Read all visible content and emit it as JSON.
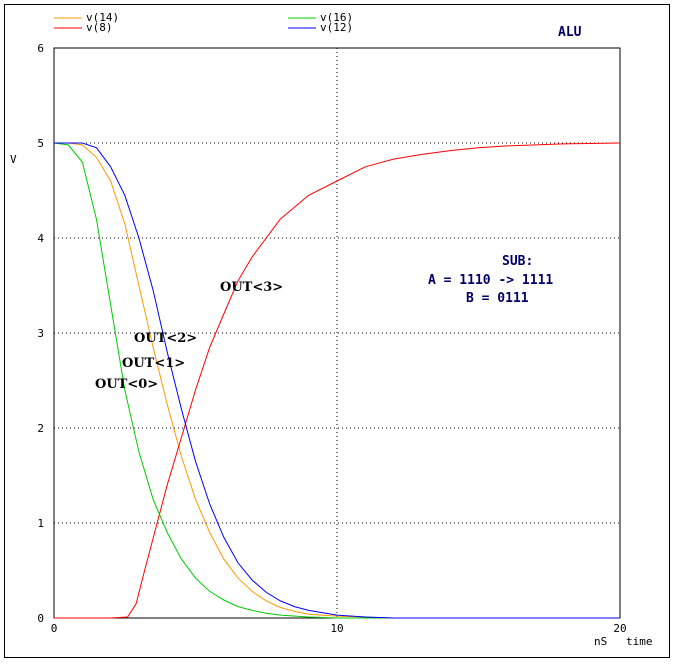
{
  "chart_data": {
    "type": "line",
    "title": "ALU",
    "ylabel": "V",
    "xlabel_unit": "nS",
    "xlabel": "time",
    "xlim": [
      0,
      20
    ],
    "ylim": [
      0,
      6
    ],
    "x_ticks": [
      "0",
      "10",
      "20"
    ],
    "y_ticks": [
      "0",
      "1",
      "2",
      "3",
      "4",
      "5",
      "6"
    ],
    "grid": true,
    "legend_position": "top-left",
    "series": [
      {
        "name": "v(14)",
        "color": "#ff9900",
        "x": [
          0,
          0.5,
          1.0,
          1.5,
          2.0,
          2.5,
          3.0,
          3.5,
          4.0,
          4.5,
          5.0,
          5.5,
          6.0,
          6.5,
          7.0,
          7.5,
          8.0,
          8.5,
          9.0,
          10.0,
          11.0,
          12.0,
          14.0,
          16.0,
          18.0,
          20.0
        ],
        "y": [
          5.0,
          5.0,
          4.98,
          4.85,
          4.6,
          4.15,
          3.5,
          2.85,
          2.25,
          1.7,
          1.25,
          0.9,
          0.62,
          0.42,
          0.28,
          0.18,
          0.11,
          0.07,
          0.04,
          0.02,
          0.01,
          0.0,
          0.0,
          0.0,
          0.0,
          0.0
        ]
      },
      {
        "name": "v(8)",
        "color": "#ff0000",
        "x": [
          0,
          1.0,
          2.0,
          2.6,
          2.9,
          3.2,
          3.6,
          4.0,
          4.5,
          5.0,
          5.5,
          6.0,
          6.5,
          7.0,
          8.0,
          9.0,
          10.0,
          11.0,
          12.0,
          13.0,
          14.0,
          15.0,
          16.0,
          18.0,
          20.0
        ],
        "y": [
          0.0,
          0.0,
          0.0,
          0.01,
          0.15,
          0.5,
          0.95,
          1.4,
          1.9,
          2.4,
          2.85,
          3.2,
          3.55,
          3.8,
          4.2,
          4.45,
          4.6,
          4.75,
          4.83,
          4.88,
          4.92,
          4.95,
          4.97,
          4.99,
          5.0
        ]
      },
      {
        "name": "v(16)",
        "color": "#00cc00",
        "x": [
          0,
          0.5,
          1.0,
          1.5,
          2.0,
          2.5,
          3.0,
          3.5,
          4.0,
          4.5,
          5.0,
          5.5,
          6.0,
          6.5,
          7.0,
          7.5,
          8.0,
          9.0,
          10.0,
          12.0,
          14.0,
          16.0,
          18.0,
          20.0
        ],
        "y": [
          5.0,
          4.98,
          4.8,
          4.2,
          3.3,
          2.4,
          1.75,
          1.25,
          0.9,
          0.62,
          0.42,
          0.28,
          0.19,
          0.12,
          0.08,
          0.05,
          0.03,
          0.01,
          0.0,
          0.0,
          0.0,
          0.0,
          0.0,
          0.0
        ]
      },
      {
        "name": "v(12)",
        "color": "#0000ff",
        "x": [
          0,
          0.5,
          1.0,
          1.5,
          2.0,
          2.5,
          3.0,
          3.5,
          4.0,
          4.5,
          5.0,
          5.5,
          6.0,
          6.5,
          7.0,
          7.5,
          8.0,
          8.5,
          9.0,
          10.0,
          11.0,
          12.0,
          14.0,
          16.0,
          18.0,
          20.0
        ],
        "y": [
          5.0,
          5.0,
          5.0,
          4.95,
          4.75,
          4.45,
          4.0,
          3.45,
          2.8,
          2.2,
          1.65,
          1.2,
          0.85,
          0.58,
          0.4,
          0.27,
          0.18,
          0.12,
          0.08,
          0.03,
          0.01,
          0.0,
          0.0,
          0.0,
          0.0,
          0.0
        ]
      }
    ],
    "annotations": {
      "out3": "OUT<3>",
      "out2": "OUT<2>",
      "out1": "OUT<1>",
      "out0": "OUT<0>",
      "sub_title": "SUB:",
      "sub_line_a": "A = 1110 -> 1111",
      "sub_line_b": "B = 0111"
    }
  }
}
